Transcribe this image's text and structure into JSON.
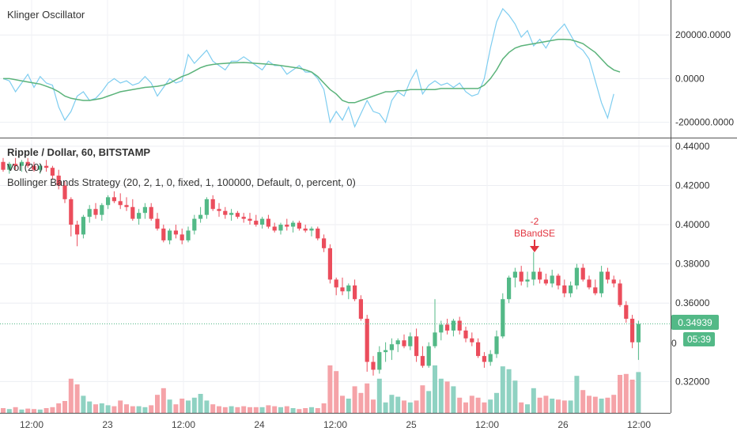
{
  "panes": {
    "oscillator": {
      "title": "Klinger Oscillator"
    },
    "price": {
      "symbol": "Ripple / Dollar, 60, BITSTAMP",
      "volume_legend": "Vol (20)",
      "strategy_legend": "Bollinger Bands Strategy (20, 2, 1, 0, fixed, 1, 100000, Default, 0, percent, 0)"
    }
  },
  "last_price_tag": "0.34939",
  "countdown_tag": "05:39",
  "hidden_axis_fragment": "0",
  "signal": {
    "line1": "-2",
    "line2": "BBandSE"
  },
  "colors": {
    "up": "#53b987",
    "down": "#eb4d5c",
    "vol_up": "#8fd2c2",
    "vol_down": "#f5a3a8",
    "klinger": "#7ecdf0",
    "signal_line": "#5bb37a",
    "signal_marker": "#e2343f",
    "tag_bg": "#53b987"
  },
  "chart_data": [
    {
      "type": "line",
      "title": "Klinger Oscillator",
      "y_ticks": [
        "200000.0000",
        "0.0000",
        "-200000.0000"
      ],
      "y_tick_values": [
        200000,
        0,
        -200000
      ],
      "ylim": [
        -270000,
        360000
      ],
      "grid": true,
      "series": [
        {
          "values": [
            0,
            -10000,
            -60000,
            -20000,
            20000,
            -40000,
            10000,
            -20000,
            -30000,
            -130000,
            -190000,
            -150000,
            -80000,
            -60000,
            -100000,
            -90000,
            -60000,
            -20000,
            0,
            -20000,
            -10000,
            -30000,
            -20000,
            10000,
            -20000,
            -80000,
            -40000,
            0,
            -20000,
            -10000,
            110000,
            70000,
            100000,
            130000,
            80000,
            60000,
            40000,
            80000,
            80000,
            100000,
            80000,
            60000,
            40000,
            80000,
            60000,
            60000,
            20000,
            40000,
            60000,
            30000,
            30000,
            0,
            -50000,
            -200000,
            -150000,
            -190000,
            -130000,
            -220000,
            -160000,
            -100000,
            -150000,
            -160000,
            -200000,
            -100000,
            -60000,
            -80000,
            -10000,
            40000,
            -70000,
            -30000,
            -10000,
            -30000,
            -20000,
            -40000,
            -20000,
            -60000,
            -80000,
            -70000,
            0,
            140000,
            260000,
            320000,
            290000,
            250000,
            190000,
            220000,
            150000,
            180000,
            140000,
            190000,
            220000,
            250000,
            200000,
            150000,
            130000,
            90000,
            -10000,
            -110000,
            -180000,
            -70000
          ]
        },
        {
          "values": [
            0,
            0,
            -5000,
            -10000,
            -15000,
            -20000,
            -25000,
            -35000,
            -45000,
            -60000,
            -80000,
            -90000,
            -95000,
            -100000,
            -100000,
            -95000,
            -90000,
            -80000,
            -70000,
            -60000,
            -55000,
            -50000,
            -45000,
            -40000,
            -38000,
            -35000,
            -30000,
            -20000,
            -5000,
            10000,
            20000,
            35000,
            50000,
            60000,
            65000,
            68000,
            70000,
            72000,
            73000,
            74000,
            72000,
            70000,
            68000,
            66000,
            64000,
            60000,
            56000,
            52000,
            48000,
            40000,
            30000,
            10000,
            -20000,
            -50000,
            -70000,
            -100000,
            -110000,
            -110000,
            -100000,
            -90000,
            -80000,
            -70000,
            -60000,
            -60000,
            -55000,
            -55000,
            -50000,
            -50000,
            -50000,
            -50000,
            -50000,
            -45000,
            -45000,
            -45000,
            -45000,
            -45000,
            -45000,
            -45000,
            -30000,
            0,
            40000,
            90000,
            120000,
            140000,
            150000,
            155000,
            160000,
            165000,
            170000,
            175000,
            180000,
            180000,
            178000,
            170000,
            160000,
            140000,
            120000,
            90000,
            60000,
            40000,
            30000
          ]
        }
      ]
    },
    {
      "type": "candlestick",
      "title": "Ripple / Dollar, 60, BITSTAMP",
      "y_ticks": [
        "0.44000",
        "0.42000",
        "0.40000",
        "0.38000",
        "0.36000",
        "0.32000"
      ],
      "y_tick_values": [
        0.44,
        0.42,
        0.4,
        0.38,
        0.36,
        0.32
      ],
      "ylim": [
        0.304,
        0.444
      ],
      "x_ticks": [
        "12:00",
        "23",
        "12:00",
        "24",
        "12:00",
        "25",
        "12:00",
        "26",
        "12:00"
      ],
      "last_price": 0.34939,
      "grid": true,
      "ohlc": [
        [
          0.432,
          0.434,
          0.427,
          0.428
        ],
        [
          0.428,
          0.432,
          0.426,
          0.431
        ],
        [
          0.431,
          0.434,
          0.428,
          0.43
        ],
        [
          0.43,
          0.433,
          0.427,
          0.432
        ],
        [
          0.432,
          0.434,
          0.429,
          0.43
        ],
        [
          0.43,
          0.432,
          0.427,
          0.428
        ],
        [
          0.428,
          0.431,
          0.426,
          0.43
        ],
        [
          0.43,
          0.433,
          0.427,
          0.429
        ],
        [
          0.429,
          0.43,
          0.423,
          0.425
        ],
        [
          0.425,
          0.428,
          0.418,
          0.42
        ],
        [
          0.42,
          0.422,
          0.411,
          0.413
        ],
        [
          0.413,
          0.414,
          0.394,
          0.4
        ],
        [
          0.4,
          0.402,
          0.389,
          0.395
        ],
        [
          0.395,
          0.405,
          0.393,
          0.404
        ],
        [
          0.404,
          0.41,
          0.401,
          0.408
        ],
        [
          0.408,
          0.411,
          0.403,
          0.405
        ],
        [
          0.405,
          0.411,
          0.402,
          0.41
        ],
        [
          0.41,
          0.415,
          0.408,
          0.414
        ],
        [
          0.414,
          0.417,
          0.411,
          0.412
        ],
        [
          0.412,
          0.416,
          0.408,
          0.41
        ],
        [
          0.41,
          0.414,
          0.407,
          0.409
        ],
        [
          0.409,
          0.413,
          0.402,
          0.403
        ],
        [
          0.403,
          0.408,
          0.4,
          0.406
        ],
        [
          0.406,
          0.411,
          0.403,
          0.409
        ],
        [
          0.409,
          0.411,
          0.402,
          0.403
        ],
        [
          0.403,
          0.406,
          0.397,
          0.398
        ],
        [
          0.398,
          0.4,
          0.391,
          0.392
        ],
        [
          0.392,
          0.398,
          0.39,
          0.397
        ],
        [
          0.397,
          0.4,
          0.393,
          0.395
        ],
        [
          0.395,
          0.398,
          0.39,
          0.392
        ],
        [
          0.392,
          0.399,
          0.391,
          0.397
        ],
        [
          0.397,
          0.405,
          0.395,
          0.403
        ],
        [
          0.403,
          0.409,
          0.401,
          0.405
        ],
        [
          0.405,
          0.414,
          0.403,
          0.413
        ],
        [
          0.413,
          0.415,
          0.407,
          0.408
        ],
        [
          0.408,
          0.411,
          0.404,
          0.407
        ],
        [
          0.407,
          0.409,
          0.403,
          0.405
        ],
        [
          0.405,
          0.408,
          0.402,
          0.406
        ],
        [
          0.406,
          0.407,
          0.403,
          0.404
        ],
        [
          0.404,
          0.406,
          0.401,
          0.403
        ],
        [
          0.403,
          0.406,
          0.4,
          0.402
        ],
        [
          0.402,
          0.405,
          0.399,
          0.4
        ],
        [
          0.4,
          0.404,
          0.398,
          0.403
        ],
        [
          0.403,
          0.405,
          0.398,
          0.399
        ],
        [
          0.399,
          0.401,
          0.396,
          0.397
        ],
        [
          0.397,
          0.401,
          0.395,
          0.4
        ],
        [
          0.4,
          0.403,
          0.397,
          0.399
        ],
        [
          0.399,
          0.402,
          0.396,
          0.401
        ],
        [
          0.401,
          0.402,
          0.397,
          0.398
        ],
        [
          0.398,
          0.4,
          0.396,
          0.397
        ],
        [
          0.397,
          0.399,
          0.394,
          0.398
        ],
        [
          0.398,
          0.399,
          0.392,
          0.393
        ],
        [
          0.393,
          0.395,
          0.386,
          0.388
        ],
        [
          0.388,
          0.39,
          0.37,
          0.372
        ],
        [
          0.372,
          0.373,
          0.364,
          0.368
        ],
        [
          0.368,
          0.373,
          0.364,
          0.366
        ],
        [
          0.366,
          0.37,
          0.362,
          0.369
        ],
        [
          0.369,
          0.372,
          0.361,
          0.362
        ],
        [
          0.362,
          0.364,
          0.351,
          0.352
        ],
        [
          0.352,
          0.354,
          0.325,
          0.33
        ],
        [
          0.33,
          0.333,
          0.323,
          0.326
        ],
        [
          0.326,
          0.338,
          0.324,
          0.335
        ],
        [
          0.335,
          0.34,
          0.33,
          0.336
        ],
        [
          0.336,
          0.342,
          0.331,
          0.339
        ],
        [
          0.339,
          0.342,
          0.335,
          0.341
        ],
        [
          0.341,
          0.344,
          0.337,
          0.338
        ],
        [
          0.338,
          0.345,
          0.336,
          0.343
        ],
        [
          0.343,
          0.347,
          0.33,
          0.333
        ],
        [
          0.333,
          0.338,
          0.327,
          0.328
        ],
        [
          0.328,
          0.34,
          0.327,
          0.338
        ],
        [
          0.338,
          0.362,
          0.337,
          0.345
        ],
        [
          0.345,
          0.351,
          0.341,
          0.349
        ],
        [
          0.349,
          0.352,
          0.344,
          0.346
        ],
        [
          0.346,
          0.352,
          0.343,
          0.351
        ],
        [
          0.351,
          0.353,
          0.344,
          0.346
        ],
        [
          0.346,
          0.348,
          0.34,
          0.342
        ],
        [
          0.342,
          0.345,
          0.338,
          0.34
        ],
        [
          0.34,
          0.342,
          0.332,
          0.333
        ],
        [
          0.333,
          0.335,
          0.327,
          0.33
        ],
        [
          0.33,
          0.336,
          0.328,
          0.334
        ],
        [
          0.334,
          0.346,
          0.332,
          0.343
        ],
        [
          0.343,
          0.365,
          0.342,
          0.362
        ],
        [
          0.362,
          0.374,
          0.36,
          0.373
        ],
        [
          0.373,
          0.378,
          0.368,
          0.376
        ],
        [
          0.376,
          0.379,
          0.369,
          0.371
        ],
        [
          0.371,
          0.376,
          0.368,
          0.372
        ],
        [
          0.372,
          0.386,
          0.369,
          0.376
        ],
        [
          0.376,
          0.378,
          0.37,
          0.372
        ],
        [
          0.372,
          0.375,
          0.369,
          0.37
        ],
        [
          0.37,
          0.377,
          0.368,
          0.374
        ],
        [
          0.374,
          0.375,
          0.367,
          0.369
        ],
        [
          0.369,
          0.372,
          0.363,
          0.365
        ],
        [
          0.365,
          0.371,
          0.363,
          0.369
        ],
        [
          0.369,
          0.38,
          0.367,
          0.378
        ],
        [
          0.378,
          0.38,
          0.371,
          0.372
        ],
        [
          0.372,
          0.374,
          0.367,
          0.368
        ],
        [
          0.368,
          0.372,
          0.364,
          0.365
        ],
        [
          0.365,
          0.379,
          0.363,
          0.376
        ],
        [
          0.376,
          0.378,
          0.37,
          0.372
        ],
        [
          0.372,
          0.374,
          0.368,
          0.37
        ],
        [
          0.37,
          0.372,
          0.358,
          0.359
        ],
        [
          0.359,
          0.361,
          0.35,
          0.352
        ],
        [
          0.352,
          0.354,
          0.337,
          0.34
        ],
        [
          0.34,
          0.351,
          0.331,
          0.3494
        ]
      ]
    },
    {
      "type": "bar",
      "title": "Vol (20)",
      "volume": [
        0.1,
        0.08,
        0.12,
        0.07,
        0.09,
        0.08,
        0.07,
        0.1,
        0.12,
        0.2,
        0.25,
        0.72,
        0.6,
        0.36,
        0.24,
        0.18,
        0.2,
        0.16,
        0.14,
        0.26,
        0.18,
        0.14,
        0.14,
        0.12,
        0.16,
        0.38,
        0.52,
        0.28,
        0.18,
        0.3,
        0.26,
        0.32,
        0.4,
        0.26,
        0.18,
        0.14,
        0.12,
        0.14,
        0.12,
        0.14,
        0.12,
        0.12,
        0.12,
        0.16,
        0.14,
        0.12,
        0.14,
        0.1,
        0.08,
        0.1,
        0.12,
        0.1,
        0.2,
        1.0,
        0.88,
        0.36,
        0.3,
        0.56,
        0.42,
        0.62,
        0.28,
        0.72,
        0.22,
        0.38,
        0.34,
        0.26,
        0.22,
        0.26,
        0.58,
        0.46,
        1.0,
        0.72,
        0.66,
        0.56,
        0.32,
        0.22,
        0.36,
        0.32,
        0.22,
        0.28,
        0.42,
        0.98,
        0.92,
        0.68,
        0.22,
        0.18,
        0.52,
        0.32,
        0.36,
        0.3,
        0.28,
        0.26,
        0.26,
        0.78,
        0.48,
        0.36,
        0.34,
        0.3,
        0.32,
        0.38,
        0.8,
        0.82,
        0.7,
        0.86
      ]
    }
  ]
}
